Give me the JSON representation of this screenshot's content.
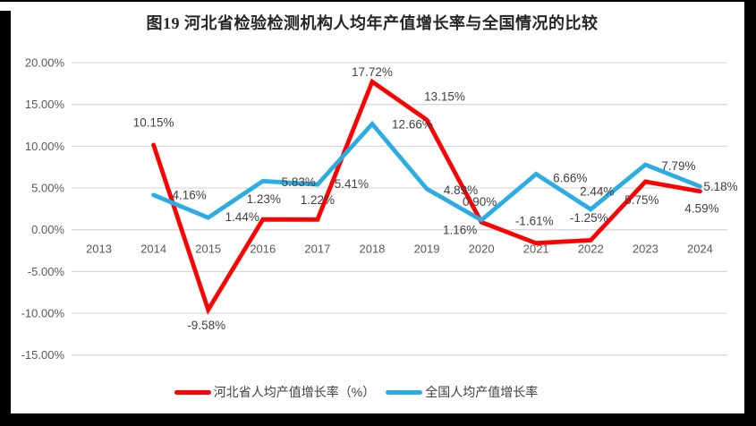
{
  "chart_data": {
    "type": "line",
    "title": "图19  河北省检验检测机构人均年产值增长率与全国情况的比较",
    "categories": [
      "2013",
      "2014",
      "2015",
      "2016",
      "2017",
      "2018",
      "2019",
      "2020",
      "2021",
      "2022",
      "2023",
      "2024"
    ],
    "xlabel": "",
    "ylabel": "",
    "ylim": [
      -15,
      20
    ],
    "y_step": 5,
    "grid": true,
    "legend_position": "bottom",
    "y_tick_labels": [
      "20.00%",
      "15.00%",
      "10.00%",
      "5.00%",
      "0.00%",
      "-5.00%",
      "-10.00%",
      "-15.00%"
    ],
    "axis_text_color": "#595959",
    "label_text_color": "#404040",
    "gridline_color": "#d9d9d9",
    "series": [
      {
        "name": "河北省人均产值增长率（%）",
        "color": "#fe0000",
        "values": [
          null,
          10.15,
          -9.58,
          1.23,
          1.22,
          17.72,
          13.15,
          0.9,
          -1.61,
          -1.25,
          5.75,
          4.59
        ],
        "labels": [
          "",
          "10.15%",
          "-9.58%",
          "1.23%",
          "1.22%",
          "17.72%",
          "13.15%",
          "0.90%",
          "-1.61%",
          "-1.25%",
          "5.75%",
          "4.59%"
        ],
        "label_offsets": [
          null,
          [
            0,
            -25
          ],
          [
            -2,
            17
          ],
          [
            1,
            -23
          ],
          [
            0,
            -22
          ],
          [
            0,
            -11
          ],
          [
            20,
            -26
          ],
          [
            -2,
            -23
          ],
          [
            -2,
            -25
          ],
          [
            -2,
            -25
          ],
          [
            -4,
            20
          ],
          [
            2,
            19
          ]
        ]
      },
      {
        "name": "全国人均产值增长率",
        "color": "#2bace2",
        "values": [
          null,
          4.16,
          1.44,
          5.83,
          5.41,
          12.66,
          4.89,
          1.16,
          6.66,
          2.44,
          7.79,
          5.18
        ],
        "labels": [
          "",
          "4.16%",
          "1.44%",
          "5.83%",
          "5.41%",
          "12.66%",
          "4.89%",
          "1.16%",
          "6.66%",
          "2.44%",
          "7.79%",
          "5.18%"
        ],
        "label_offsets": [
          null,
          [
            40,
            0
          ],
          [
            38,
            -1
          ],
          [
            40,
            1
          ],
          [
            38,
            -1
          ],
          [
            45,
            0
          ],
          [
            38,
            1
          ],
          [
            -24,
            11
          ],
          [
            38,
            4
          ],
          [
            7,
            -20
          ],
          [
            37,
            1
          ],
          [
            23,
            0
          ]
        ]
      }
    ]
  }
}
